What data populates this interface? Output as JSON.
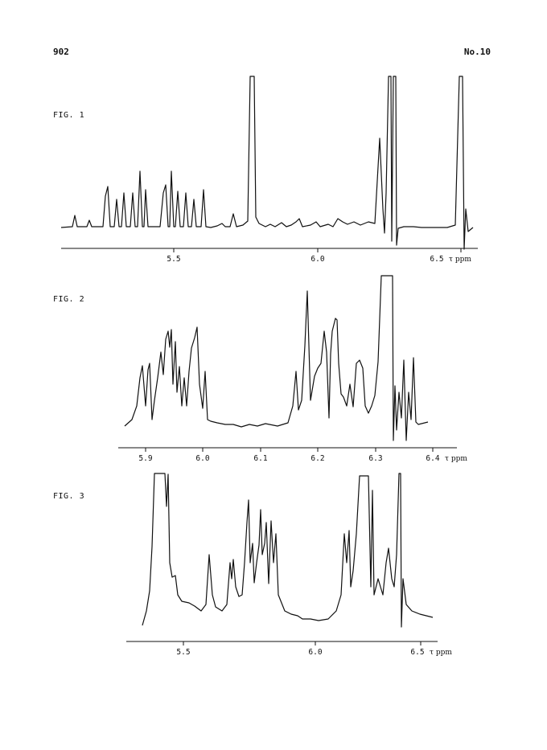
{
  "header": {
    "page_number": "902",
    "issue": "No.10"
  },
  "unit_label": "τ ppm",
  "figures": [
    {
      "label": "FIG. 1",
      "ticks": [
        "5.5",
        "6.0",
        "6.5"
      ]
    },
    {
      "label": "FIG. 2",
      "ticks": [
        "5.9",
        "6.0",
        "6.1",
        "6.2",
        "6.3",
        "6.4"
      ]
    },
    {
      "label": "FIG. 3",
      "ticks": [
        "5.5",
        "6.0",
        "6.5"
      ]
    }
  ]
}
